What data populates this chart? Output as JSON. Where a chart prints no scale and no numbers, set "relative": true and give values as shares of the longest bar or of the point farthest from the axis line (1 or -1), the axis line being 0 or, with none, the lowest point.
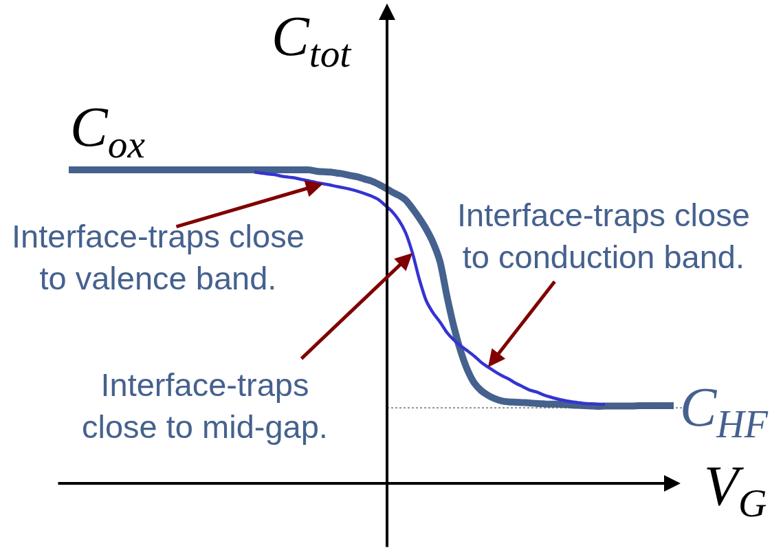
{
  "chart_data": {
    "type": "line",
    "relative": true,
    "line_style": "solid",
    "xlabel": "V$_{G}$",
    "ylabel": "C$_{tot}$",
    "categories": [
      null,
      null,
      null,
      null,
      null,
      null,
      null,
      null,
      null,
      null,
      null,
      null,
      null,
      null,
      null,
      null,
      null,
      null,
      null,
      null,
      null,
      null,
      null,
      null,
      null,
      null,
      null,
      null,
      null,
      null,
      null,
      null,
      null,
      null,
      null,
      null,
      null,
      null,
      null,
      null,
      null,
      null,
      null,
      null,
      null,
      null,
      null,
      null,
      null,
      null,
      null,
      null,
      null,
      null,
      null,
      null,
      null,
      null,
      null,
      null,
      null,
      null,
      null,
      null,
      null,
      null,
      null,
      null,
      null,
      null,
      null,
      null,
      null,
      null,
      null,
      null,
      null,
      null,
      null,
      null,
      null,
      null,
      null,
      null,
      null,
      null,
      null,
      null,
      null
    ],
    "series": [
      {
        "color": "#45618e",
        "values": [
          1.0,
          1.0,
          1.0,
          1.0,
          1.0,
          1.0,
          1.0,
          1.0,
          1.0,
          1.0,
          1.0,
          1.0,
          1.0,
          1.0,
          1.0,
          1.0,
          1.0,
          1.0,
          1.0,
          1.0,
          1.0,
          1.0,
          1.0,
          1.0,
          1.0,
          1.0,
          1.0,
          1.0,
          1.0,
          1.0,
          1.0,
          1.0,
          1.0,
          1.0,
          1.0,
          1.0,
          0.996,
          0.994,
          0.993,
          0.99,
          0.987,
          0.982,
          0.978,
          0.971,
          0.965,
          0.955,
          0.943,
          0.93,
          0.919,
          0.904,
          0.877,
          0.846,
          0.811,
          0.768,
          0.708,
          0.599,
          0.502,
          0.423,
          0.362,
          0.32,
          0.296,
          0.281,
          0.27,
          0.263,
          0.26,
          0.259,
          0.258,
          0.257,
          0.255,
          0.254,
          0.253,
          0.253,
          0.252,
          0.25,
          0.249,
          0.248,
          0.247,
          0.246,
          0.247,
          0.247,
          0.247,
          0.247,
          0.247,
          0.248,
          0.248,
          0.248,
          0.248,
          0.248,
          0.248
        ]
      },
      {
        "color": "#3434d2",
        "values": [
          null,
          null,
          null,
          null,
          null,
          null,
          null,
          null,
          null,
          null,
          null,
          null,
          null,
          null,
          null,
          null,
          null,
          null,
          null,
          null,
          null,
          null,
          null,
          null,
          null,
          null,
          null,
          0.993,
          0.99,
          0.987,
          0.985,
          0.98,
          0.977,
          0.974,
          0.969,
          0.965,
          0.96,
          0.956,
          0.952,
          0.947,
          0.943,
          0.938,
          0.932,
          0.925,
          0.917,
          0.906,
          0.888,
          0.868,
          0.84,
          0.8,
          0.735,
          0.651,
          0.583,
          0.544,
          0.515,
          0.482,
          0.458,
          0.439,
          0.423,
          0.406,
          0.386,
          0.371,
          0.357,
          0.344,
          0.333,
          0.32,
          0.309,
          0.298,
          0.292,
          0.283,
          0.276,
          0.27,
          0.265,
          0.261,
          0.258,
          0.255,
          0.254,
          0.253,
          0.252,
          null,
          null,
          null,
          null,
          null,
          null,
          null,
          null,
          null,
          null
        ]
      }
    ],
    "ref_lines": [
      {
        "axis": "y",
        "value": 0.241,
        "color": "#555555",
        "line_style": "dotted"
      }
    ],
    "annotations": [
      "C$_{ox}$",
      "Interface-traps close\nto valence band.",
      "Interface-traps close\nto conduction band.",
      "Interface-traps\nclose to mid-gap.",
      "C$_{HF}$"
    ]
  }
}
